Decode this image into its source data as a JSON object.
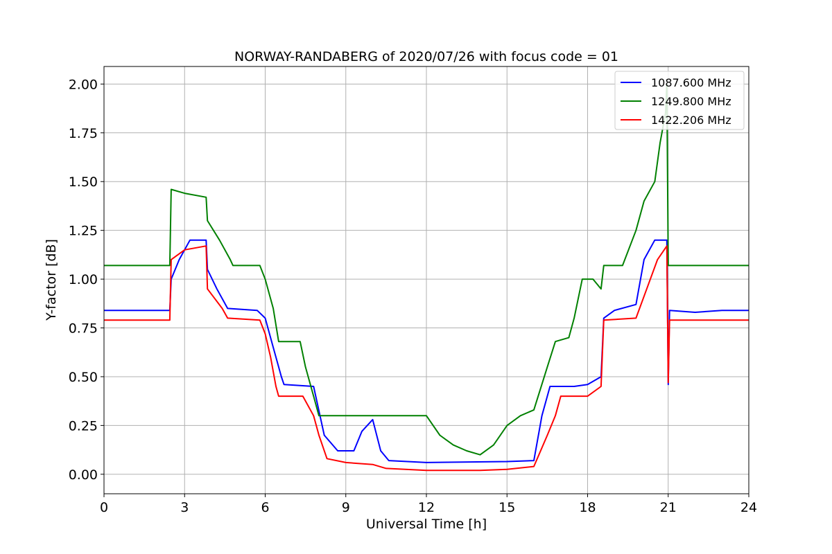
{
  "chart_data": {
    "type": "line",
    "title": "NORWAY-RANDABERG of 2020/07/26 with focus code = 01",
    "xlabel": "Universal Time [h]",
    "ylabel": "Y-factor [dB]",
    "xlim": [
      0,
      24
    ],
    "ylim": [
      -0.1,
      2.09
    ],
    "xticks": [
      "0",
      "3",
      "6",
      "9",
      "12",
      "15",
      "18",
      "21",
      "24"
    ],
    "yticks": [
      "0.00",
      "0.25",
      "0.50",
      "0.75",
      "1.00",
      "1.25",
      "1.50",
      "1.75",
      "2.00"
    ],
    "grid": true,
    "legend_position": "top-right",
    "series": [
      {
        "name": "1087.600 MHz",
        "color": "#0000ff",
        "points": [
          [
            0,
            0.84
          ],
          [
            2.45,
            0.84
          ],
          [
            2.5,
            1.0
          ],
          [
            2.8,
            1.1
          ],
          [
            3.2,
            1.2
          ],
          [
            3.8,
            1.2
          ],
          [
            3.85,
            1.05
          ],
          [
            4.2,
            0.95
          ],
          [
            4.6,
            0.85
          ],
          [
            5.7,
            0.84
          ],
          [
            6.0,
            0.8
          ],
          [
            6.3,
            0.65
          ],
          [
            6.6,
            0.5
          ],
          [
            6.7,
            0.46
          ],
          [
            7.8,
            0.45
          ],
          [
            8.2,
            0.2
          ],
          [
            8.7,
            0.12
          ],
          [
            9.3,
            0.12
          ],
          [
            9.6,
            0.22
          ],
          [
            10.0,
            0.28
          ],
          [
            10.3,
            0.12
          ],
          [
            10.6,
            0.07
          ],
          [
            12.0,
            0.06
          ],
          [
            15.0,
            0.065
          ],
          [
            16.0,
            0.07
          ],
          [
            16.3,
            0.3
          ],
          [
            16.6,
            0.45
          ],
          [
            17.5,
            0.45
          ],
          [
            18.0,
            0.46
          ],
          [
            18.5,
            0.5
          ],
          [
            18.6,
            0.8
          ],
          [
            19.0,
            0.84
          ],
          [
            19.8,
            0.87
          ],
          [
            20.1,
            1.1
          ],
          [
            20.5,
            1.2
          ],
          [
            20.95,
            1.2
          ],
          [
            21.0,
            0.46
          ],
          [
            21.05,
            0.84
          ],
          [
            22.0,
            0.83
          ],
          [
            23.0,
            0.84
          ],
          [
            24,
            0.84
          ]
        ]
      },
      {
        "name": "1249.800 MHz",
        "color": "#008000",
        "points": [
          [
            0,
            1.07
          ],
          [
            2.45,
            1.07
          ],
          [
            2.5,
            1.46
          ],
          [
            3.0,
            1.44
          ],
          [
            3.8,
            1.42
          ],
          [
            3.85,
            1.3
          ],
          [
            4.3,
            1.2
          ],
          [
            4.7,
            1.1
          ],
          [
            4.8,
            1.07
          ],
          [
            5.8,
            1.07
          ],
          [
            6.0,
            1.0
          ],
          [
            6.3,
            0.85
          ],
          [
            6.5,
            0.68
          ],
          [
            7.3,
            0.68
          ],
          [
            7.5,
            0.55
          ],
          [
            7.8,
            0.4
          ],
          [
            8.0,
            0.3
          ],
          [
            10.5,
            0.3
          ],
          [
            11.5,
            0.3
          ],
          [
            12.0,
            0.3
          ],
          [
            12.5,
            0.2
          ],
          [
            13.0,
            0.15
          ],
          [
            13.5,
            0.12
          ],
          [
            14.0,
            0.1
          ],
          [
            14.5,
            0.15
          ],
          [
            15.0,
            0.25
          ],
          [
            15.5,
            0.3
          ],
          [
            16.0,
            0.33
          ],
          [
            16.5,
            0.55
          ],
          [
            16.8,
            0.68
          ],
          [
            17.3,
            0.7
          ],
          [
            17.5,
            0.8
          ],
          [
            17.8,
            1.0
          ],
          [
            18.2,
            1.0
          ],
          [
            18.5,
            0.95
          ],
          [
            18.6,
            1.07
          ],
          [
            19.3,
            1.07
          ],
          [
            19.8,
            1.25
          ],
          [
            20.1,
            1.4
          ],
          [
            20.5,
            1.5
          ],
          [
            20.7,
            1.7
          ],
          [
            20.9,
            1.85
          ],
          [
            20.95,
            2.0
          ],
          [
            21.0,
            1.07
          ],
          [
            22.0,
            1.07
          ],
          [
            23.0,
            1.07
          ],
          [
            24,
            1.07
          ]
        ]
      },
      {
        "name": "1422.206 MHz",
        "color": "#ff0000",
        "points": [
          [
            0,
            0.79
          ],
          [
            2.45,
            0.79
          ],
          [
            2.5,
            1.1
          ],
          [
            3.0,
            1.15
          ],
          [
            3.8,
            1.17
          ],
          [
            3.85,
            0.95
          ],
          [
            4.4,
            0.85
          ],
          [
            4.6,
            0.8
          ],
          [
            5.8,
            0.79
          ],
          [
            6.0,
            0.72
          ],
          [
            6.2,
            0.6
          ],
          [
            6.4,
            0.45
          ],
          [
            6.5,
            0.4
          ],
          [
            7.4,
            0.4
          ],
          [
            7.8,
            0.3
          ],
          [
            8.0,
            0.2
          ],
          [
            8.3,
            0.08
          ],
          [
            9.0,
            0.06
          ],
          [
            10.0,
            0.05
          ],
          [
            10.5,
            0.03
          ],
          [
            12.0,
            0.02
          ],
          [
            14.0,
            0.02
          ],
          [
            15.0,
            0.025
          ],
          [
            16.0,
            0.04
          ],
          [
            16.5,
            0.2
          ],
          [
            16.8,
            0.3
          ],
          [
            17.0,
            0.4
          ],
          [
            18.0,
            0.4
          ],
          [
            18.5,
            0.45
          ],
          [
            18.6,
            0.79
          ],
          [
            19.8,
            0.8
          ],
          [
            20.2,
            0.95
          ],
          [
            20.6,
            1.1
          ],
          [
            20.95,
            1.17
          ],
          [
            21.0,
            0.47
          ],
          [
            21.05,
            0.79
          ],
          [
            22.0,
            0.79
          ],
          [
            23.0,
            0.79
          ],
          [
            24,
            0.79
          ]
        ]
      }
    ]
  }
}
